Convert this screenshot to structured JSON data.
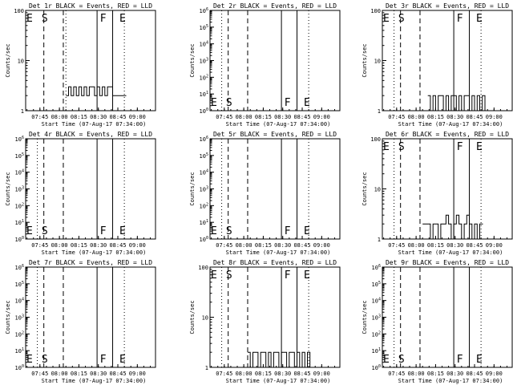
{
  "time_ticks": [
    "07:45",
    "08:00",
    "08:15",
    "08:30",
    "08:45",
    "09:00"
  ],
  "xlabel": "Start Time (07-Aug-17 07:34:00)",
  "ylabel": "Counts/sec",
  "colors": {
    "events": "#000000",
    "lld": "#ff0000"
  },
  "chart_data": [
    {
      "type": "line",
      "title": "Det 1r BLACK = Events, RED = LLD",
      "yscale": "log",
      "ylim": [
        1,
        100
      ],
      "yticks": [
        "1",
        "10",
        "100"
      ],
      "flags": {
        "E": "07:34",
        "S": "07:45",
        "F": "08:30",
        "E2": "08:45"
      },
      "flag_lines": {
        "dashed": [
          "07:48",
          "08:03"
        ],
        "dotted": [
          "08:05",
          "08:50"
        ],
        "solid": [
          "08:29",
          "08:41"
        ]
      },
      "series": [
        {
          "x": [
            "08:05",
            "08:07",
            "08:09",
            "08:11",
            "08:13",
            "08:15",
            "08:17",
            "08:19",
            "08:21",
            "08:23",
            "08:25",
            "08:27",
            "08:29",
            "08:31",
            "08:33",
            "08:35",
            "08:37",
            "08:39",
            "08:41",
            "08:43",
            "08:45",
            "08:47",
            "08:49"
          ],
          "y": [
            2,
            3,
            2,
            3,
            2,
            3,
            2,
            3,
            2,
            3,
            3,
            2,
            3,
            2,
            3,
            2,
            3,
            3,
            2,
            2,
            2,
            2,
            2
          ]
        }
      ]
    },
    {
      "type": "line",
      "title": "Det 2r BLACK = Events, RED = LLD",
      "yscale": "log",
      "ylim": [
        1,
        1000000
      ],
      "yticks": [
        "10^0",
        "10^1",
        "10^2",
        "10^3",
        "10^4",
        "10^5",
        "10^6"
      ],
      "flags": {
        "E": "07:34",
        "S": "07:45",
        "F": "08:30",
        "E2": "08:45"
      },
      "flag_lines": {
        "dashed": [
          "07:48",
          "08:03"
        ],
        "dotted": [
          "07:43",
          "08:50"
        ],
        "solid": [
          "08:29",
          "08:41"
        ]
      },
      "series": []
    },
    {
      "type": "line",
      "title": "Det 3r BLACK = Events, RED = LLD",
      "yscale": "log",
      "ylim": [
        1,
        100
      ],
      "yticks": [
        "1",
        "10",
        "100"
      ],
      "flags": {
        "E": "07:34",
        "S": "07:45",
        "F": "08:30",
        "E2": "08:45"
      },
      "flag_lines": {
        "dashed": [
          "07:48",
          "08:03"
        ],
        "dotted": [
          "07:43",
          "08:50"
        ],
        "solid": [
          "08:29",
          "08:41"
        ]
      },
      "series": [
        {
          "x": [
            "08:09",
            "08:11",
            "08:13",
            "08:15",
            "08:17",
            "08:19",
            "08:21",
            "08:23",
            "08:25",
            "08:27",
            "08:29",
            "08:31",
            "08:33",
            "08:35",
            "08:37",
            "08:39",
            "08:41",
            "08:43",
            "08:45",
            "08:47",
            "08:49",
            "08:51",
            "08:53"
          ],
          "y": [
            2,
            1,
            2,
            1,
            2,
            2,
            1,
            2,
            1,
            2,
            2,
            1,
            2,
            1,
            2,
            2,
            1,
            2,
            1,
            2,
            1,
            2,
            1
          ]
        }
      ]
    },
    {
      "type": "line",
      "title": "Det 4r BLACK = Events, RED = LLD",
      "yscale": "log",
      "ylim": [
        1,
        1000000
      ],
      "yticks": [
        "10^0",
        "10^1",
        "10^2",
        "10^3",
        "10^4",
        "10^5",
        "10^6"
      ],
      "flags": {
        "E": "07:34",
        "S": "07:45",
        "F": "08:30",
        "E2": "08:45"
      },
      "flag_lines": {
        "dashed": [
          "07:48",
          "08:03"
        ],
        "dotted": [
          "07:43",
          "08:50"
        ],
        "solid": [
          "08:29",
          "08:41"
        ]
      },
      "series": []
    },
    {
      "type": "line",
      "title": "Det 5r BLACK = Events, RED = LLD",
      "yscale": "log",
      "ylim": [
        1,
        1000000
      ],
      "yticks": [
        "10^0",
        "10^1",
        "10^2",
        "10^3",
        "10^4",
        "10^5",
        "10^6"
      ],
      "flags": {
        "E": "07:34",
        "S": "07:45",
        "F": "08:30",
        "E2": "08:45"
      },
      "flag_lines": {
        "dashed": [
          "07:48",
          "08:03"
        ],
        "dotted": [
          "07:43",
          "08:50"
        ],
        "solid": [
          "08:29",
          "08:41"
        ]
      },
      "series": []
    },
    {
      "type": "line",
      "title": "Det 6r BLACK = Events, RED = LLD",
      "yscale": "log",
      "ylim": [
        1,
        100
      ],
      "yticks": [
        "1",
        "10",
        "100"
      ],
      "flags": {
        "E": "07:34",
        "S": "07:45",
        "F": "08:30",
        "E2": "08:45"
      },
      "flag_lines": {
        "dashed": [
          "07:48",
          "08:03"
        ],
        "dotted": [
          "07:43",
          "08:50"
        ],
        "solid": [
          "08:29",
          "08:41"
        ]
      },
      "series": [
        {
          "x": [
            "08:05",
            "08:07",
            "08:09",
            "08:11",
            "08:13",
            "08:15",
            "08:17",
            "08:19",
            "08:21",
            "08:23",
            "08:25",
            "08:27",
            "08:29",
            "08:31",
            "08:33",
            "08:35",
            "08:37",
            "08:39",
            "08:41",
            "08:43",
            "08:45",
            "08:47",
            "08:49"
          ],
          "y": [
            2,
            2,
            2,
            1,
            2,
            2,
            1,
            2,
            2,
            3,
            2,
            1,
            2,
            3,
            2,
            1,
            2,
            3,
            2,
            1,
            2,
            1,
            2
          ]
        }
      ]
    },
    {
      "type": "line",
      "title": "Det 7r BLACK = Events, RED = LLD",
      "yscale": "log",
      "ylim": [
        1,
        1000000
      ],
      "yticks": [
        "10^0",
        "10^1",
        "10^2",
        "10^3",
        "10^4",
        "10^5",
        "10^6"
      ],
      "flags": {
        "E": "07:34",
        "S": "07:45",
        "F": "08:30",
        "E2": "08:45"
      },
      "flag_lines": {
        "dashed": [
          "07:48",
          "08:03"
        ],
        "dotted": [
          "07:43",
          "08:50"
        ],
        "solid": [
          "08:29",
          "08:41"
        ]
      },
      "series": []
    },
    {
      "type": "line",
      "title": "Det 8r BLACK = Events, RED = LLD",
      "yscale": "log",
      "ylim": [
        1,
        100
      ],
      "yticks": [
        "1",
        "10",
        "100"
      ],
      "flags": {
        "E": "07:34",
        "S": "07:45",
        "F": "08:30",
        "E2": "08:45"
      },
      "flag_lines": {
        "dashed": [
          "07:48",
          "08:03"
        ],
        "dotted": [
          "07:43",
          "08:50"
        ],
        "solid": [
          "08:29",
          "08:41"
        ]
      },
      "series": [
        {
          "x": [
            "08:03",
            "08:05",
            "08:07",
            "08:09",
            "08:11",
            "08:13",
            "08:15",
            "08:17",
            "08:19",
            "08:21",
            "08:23",
            "08:25",
            "08:27",
            "08:29",
            "08:31",
            "08:33",
            "08:35",
            "08:37",
            "08:39",
            "08:41",
            "08:43",
            "08:45",
            "08:47",
            "08:49",
            "08:51"
          ],
          "y": [
            2,
            1,
            2,
            2,
            1,
            2,
            2,
            1,
            2,
            1,
            2,
            2,
            1,
            2,
            2,
            1,
            2,
            2,
            1,
            2,
            1,
            2,
            1,
            2,
            1
          ]
        }
      ]
    },
    {
      "type": "line",
      "title": "Det 9r BLACK = Events, RED = LLD",
      "yscale": "log",
      "ylim": [
        1,
        1000000
      ],
      "yticks": [
        "10^0",
        "10^1",
        "10^2",
        "10^3",
        "10^4",
        "10^5",
        "10^6"
      ],
      "flags": {
        "E": "07:34",
        "S": "07:45",
        "F": "08:30",
        "E2": "08:45"
      },
      "flag_lines": {
        "dashed": [
          "07:48",
          "08:03"
        ],
        "dotted": [
          "07:43",
          "08:50"
        ],
        "solid": [
          "08:29",
          "08:41"
        ]
      },
      "series": []
    }
  ]
}
